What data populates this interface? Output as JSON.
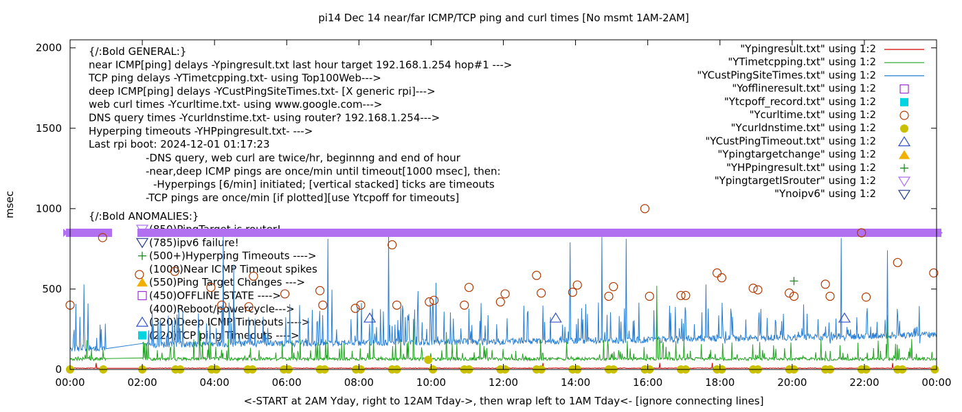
{
  "chart_data": {
    "type": "line",
    "title": "pi14 Dec 14  near/far ICMP/TCP ping and curl times [No msmt 1AM-2AM]",
    "xlabel": "<-START at 2AM Yday, right to 12AM Tday->, then wrap left to 1AM Tday<- [ignore connecting lines]",
    "ylabel": "msec",
    "ylim": [
      0,
      2050
    ],
    "xlim": [
      0,
      24
    ],
    "y_ticks": [
      "0",
      "500",
      "1000",
      "1500",
      "2000"
    ],
    "x_ticks": [
      "00:00",
      "02:00",
      "04:00",
      "06:00",
      "08:00",
      "10:00",
      "12:00",
      "14:00",
      "16:00",
      "18:00",
      "20:00",
      "22:00",
      "00:00"
    ],
    "grid": false,
    "legend_position": "top-right",
    "legend": [
      {
        "label": "\"Ypingresult.txt\" using 1:2",
        "symbol": "line",
        "color": "#d40000"
      },
      {
        "label": "\"YTimetcpping.txt\" using 1:2",
        "symbol": "line",
        "color": "#22a322"
      },
      {
        "label": "\"YCustPingSiteTimes.txt\" using 1:2",
        "symbol": "line",
        "color": "#2a7fd4"
      },
      {
        "label": "\"Yofflineresult.txt\" using 1:2",
        "symbol": "open-square",
        "color": "#9a2fd6"
      },
      {
        "label": "\"Ytcpoff_record.txt\" using 1:2",
        "symbol": "filled-square",
        "color": "#00d4e0"
      },
      {
        "label": "\"Ycurltime.txt\" using 1:2",
        "symbol": "open-circle",
        "color": "#b03a00"
      },
      {
        "label": "\"Ycurldnstime.txt\" using 1:2",
        "symbol": "filled-circle",
        "color": "#c8c000"
      },
      {
        "label": "\"YCustPingTimeout.txt\" using 1:2",
        "symbol": "open-triangle-up",
        "color": "#3050c8"
      },
      {
        "label": "\"Ypingtargetchange\" using 1:2",
        "symbol": "filled-triangle-up",
        "color": "#f0b000"
      },
      {
        "label": "\"YHPpingresult.txt\" using 1:2",
        "symbol": "plus",
        "color": "#1a8a1a"
      },
      {
        "label": "\"YpingtargetISrouter\" using 1:2",
        "symbol": "open-triangle-down",
        "color": "#b070f0"
      },
      {
        "label": "\"Ynoipv6\" using 1:2",
        "symbol": "open-triangle-down",
        "color": "#203c90"
      }
    ],
    "annotations_general": [
      "{/:Bold GENERAL:}",
      "near ICMP[ping] delays -Ypingresult.txt last hour target 192.168.1.254 hop#1 --->",
      "TCP ping delays -YTimetcpping.txt- using Top100Web--->",
      "deep ICMP[ping] delays -YCustPingSiteTimes.txt- [X generic rpi]--->",
      "web curl times -Ycurltime.txt- using www.google.com--->",
      "DNS query times -Ycurldnstime.txt- using router? 192.168.1.254--->",
      "Hyperping timeouts -YHPpingresult.txt- --->",
      "Last rpi boot: 2024-12-01 01:17:23"
    ],
    "annotations_notes": [
      "-DNS query, web curl are twice/hr, beginnng and end of hour",
      "-near,deep ICMP pings are once/min until timeout[1000 msec], then:",
      "-Hyperpings [6/min] initiated; [vertical stacked] ticks are timeouts",
      "-TCP pings are once/min [if plotted][use Ytcpoff for timeouts]"
    ],
    "annotations_anomalies_title": "{/:Bold ANOMALIES:}",
    "annotations_anomalies": [
      {
        "text": "(850)PingTarget is router!",
        "symbol": "open-triangle-down",
        "color": "#b070f0"
      },
      {
        "text": "(785)ipv6 failure!",
        "symbol": "open-triangle-down",
        "color": "#203c90"
      },
      {
        "text": "(500+)Hyperping Timeouts ---->",
        "symbol": "plus",
        "color": "#1a8a1a"
      },
      {
        "text": "(1000)Near ICMP Timeout spikes",
        "symbol": "none",
        "color": "#000000"
      },
      {
        "text": "(550)Ping Target Changes --->",
        "symbol": "filled-triangle-up",
        "color": "#f0b000"
      },
      {
        "text": "(450)OFFLINE STATE ---->",
        "symbol": "open-square",
        "color": "#9a2fd6"
      },
      {
        "text": "(400)Reboot/powercycle--->",
        "symbol": "none",
        "color": "#000000"
      },
      {
        "text": "(320)Deep ICMP Timeouts ---->",
        "symbol": "open-triangle-up",
        "color": "#3050c8"
      },
      {
        "text": "(220)TCP ping Timeouts ---->",
        "symbol": "filled-square",
        "color": "#00d4e0"
      }
    ],
    "router_band": {
      "y": 850,
      "color": "#b070f0"
    },
    "series": [
      {
        "name": "\"Ycurltime.txt\" using 1:2",
        "type": "scatter",
        "points": [
          [
            0.0,
            400
          ],
          [
            0.9,
            820
          ],
          [
            1.92,
            590
          ],
          [
            2.9,
            610
          ],
          [
            3.9,
            510
          ],
          [
            4.2,
            400
          ],
          [
            4.95,
            390
          ],
          [
            5.08,
            580
          ],
          [
            5.95,
            470
          ],
          [
            6.92,
            490
          ],
          [
            7.0,
            400
          ],
          [
            7.9,
            380
          ],
          [
            8.05,
            400
          ],
          [
            8.92,
            775
          ],
          [
            9.05,
            400
          ],
          [
            9.95,
            420
          ],
          [
            10.08,
            430
          ],
          [
            10.92,
            400
          ],
          [
            11.05,
            510
          ],
          [
            11.92,
            420
          ],
          [
            12.05,
            470
          ],
          [
            12.92,
            585
          ],
          [
            13.05,
            475
          ],
          [
            13.92,
            480
          ],
          [
            14.05,
            525
          ],
          [
            14.92,
            455
          ],
          [
            15.05,
            515
          ],
          [
            15.92,
            1000
          ],
          [
            16.05,
            455
          ],
          [
            16.92,
            460
          ],
          [
            17.05,
            460
          ],
          [
            17.92,
            600
          ],
          [
            18.05,
            570
          ],
          [
            18.92,
            505
          ],
          [
            19.05,
            495
          ],
          [
            19.92,
            475
          ],
          [
            20.05,
            455
          ],
          [
            20.92,
            530
          ],
          [
            21.05,
            455
          ],
          [
            21.92,
            850
          ],
          [
            22.05,
            450
          ],
          [
            22.92,
            665
          ],
          [
            23.92,
            600
          ]
        ]
      },
      {
        "name": "\"Ycurldnstime.txt\" using 1:2",
        "type": "scatter",
        "points": [
          [
            0.0,
            0
          ],
          [
            0.92,
            0
          ],
          [
            2.0,
            0
          ],
          [
            2.92,
            0
          ],
          [
            3.05,
            0
          ],
          [
            3.92,
            0
          ],
          [
            4.05,
            0
          ],
          [
            4.92,
            0
          ],
          [
            5.05,
            0
          ],
          [
            5.92,
            0
          ],
          [
            6.05,
            0
          ],
          [
            6.92,
            0
          ],
          [
            7.05,
            0
          ],
          [
            7.92,
            0
          ],
          [
            8.05,
            0
          ],
          [
            8.92,
            0
          ],
          [
            9.05,
            0
          ],
          [
            9.92,
            60
          ],
          [
            10.05,
            0
          ],
          [
            10.92,
            0
          ],
          [
            11.05,
            0
          ],
          [
            11.92,
            0
          ],
          [
            12.05,
            0
          ],
          [
            12.92,
            0
          ],
          [
            13.05,
            0
          ],
          [
            13.92,
            0
          ],
          [
            14.05,
            0
          ],
          [
            14.92,
            0
          ],
          [
            15.05,
            0
          ],
          [
            15.92,
            0
          ],
          [
            16.05,
            0
          ],
          [
            16.92,
            0
          ],
          [
            17.05,
            0
          ],
          [
            17.92,
            0
          ],
          [
            18.05,
            0
          ],
          [
            18.92,
            0
          ],
          [
            19.05,
            0
          ],
          [
            19.92,
            0
          ],
          [
            20.05,
            0
          ],
          [
            20.92,
            0
          ],
          [
            21.05,
            0
          ],
          [
            21.92,
            0
          ],
          [
            22.05,
            0
          ],
          [
            22.92,
            0
          ],
          [
            23.05,
            0
          ],
          [
            23.95,
            0
          ]
        ]
      },
      {
        "name": "\"YCustPingTimeout.txt\" using 1:2",
        "type": "scatter",
        "points": [
          [
            8.3,
            320
          ],
          [
            13.45,
            320
          ],
          [
            21.45,
            320
          ]
        ]
      },
      {
        "name": "\"YHPpingresult.txt\" using 1:2",
        "type": "scatter",
        "points": [
          [
            20.05,
            550
          ]
        ]
      }
    ]
  }
}
